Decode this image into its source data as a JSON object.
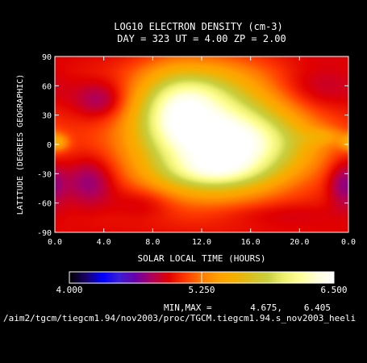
{
  "chart_data": {
    "type": "heatmap",
    "title": "LOG10 ELECTRON DENSITY (cm-3)",
    "subtitle": "DAY = 323  UT =  4.00  ZP =   2.00",
    "xlabel": "SOLAR LOCAL TIME (HOURS)",
    "ylabel": "LATITUDE (DEGREES GEOGRAPHIC)",
    "xlim": [
      0,
      24
    ],
    "ylim": [
      -90,
      90
    ],
    "x_ticks": [
      "0.0",
      "4.0",
      "8.0",
      "12.0",
      "16.0",
      "20.0",
      "0.0"
    ],
    "y_ticks": [
      "-90",
      "-60",
      "-30",
      "0",
      "30",
      "60",
      "90"
    ],
    "colorbar": {
      "min": 4.0,
      "max": 6.5,
      "tick_labels": [
        "4.000",
        "5.250",
        "6.500"
      ],
      "colors": [
        "#000000",
        "#1a0066",
        "#0000ff",
        "#3b1fd6",
        "#6a00a8",
        "#b0005a",
        "#e00000",
        "#ff3a00",
        "#ff7a00",
        "#ffa000",
        "#f5b000",
        "#d8c020",
        "#c8d040",
        "#eef070",
        "#ffff99",
        "#ffffdd",
        "#ffffff"
      ]
    },
    "minmax_label": "MIN,MAX =",
    "min_value": "4.675,",
    "max_value": "6.405",
    "file_path": "/aim2/tgcm/tiegcm1.94/nov2003/proc/TGCM.tiegcm1.94.s_nov2003_heeli",
    "grid": false,
    "field_sketch": {
      "base": 5.05,
      "lat_falloff": [
        [
          90,
          4.95
        ],
        [
          75,
          5.0
        ],
        [
          0,
          5.05
        ],
        [
          -75,
          5.0
        ],
        [
          -90,
          4.95
        ]
      ],
      "features": [
        {
          "x": 12.6,
          "y": 14,
          "sx": 4.0,
          "sy": 40,
          "amp": 1.25
        },
        {
          "x": 16.8,
          "y": 0,
          "sx": 3.3,
          "sy": 22,
          "amp": 0.6
        },
        {
          "x": 9.5,
          "y": 34,
          "sx": 2.0,
          "sy": 28,
          "amp": 0.55
        },
        {
          "x": 13.0,
          "y": -28,
          "sx": 3.2,
          "sy": 14,
          "amp": 0.55
        },
        {
          "x": 11.8,
          "y": 55,
          "sx": 2.2,
          "sy": 16,
          "amp": 0.25
        },
        {
          "x": 3.8,
          "y": 45,
          "sx": 1.6,
          "sy": 14,
          "amp": -0.3
        },
        {
          "x": 2.8,
          "y": -38,
          "sx": 1.5,
          "sy": 18,
          "amp": -0.32
        },
        {
          "x": 23.6,
          "y": -40,
          "sx": 0.9,
          "sy": 17,
          "amp": -0.3
        },
        {
          "x": 0.2,
          "y": 2,
          "sx": 0.6,
          "sy": 6,
          "amp": 0.38
        },
        {
          "x": 21.5,
          "y": 58,
          "sx": 2.6,
          "sy": 18,
          "amp": -0.18
        },
        {
          "x": 7.2,
          "y": -60,
          "sx": 1.8,
          "sy": 12,
          "amp": -0.15
        },
        {
          "x": 18.0,
          "y": -72,
          "sx": 4.0,
          "sy": 9,
          "amp": -0.12
        },
        {
          "x": 22.0,
          "y": 8,
          "sx": 1.2,
          "sy": 6,
          "amp": 0.22
        }
      ]
    }
  }
}
